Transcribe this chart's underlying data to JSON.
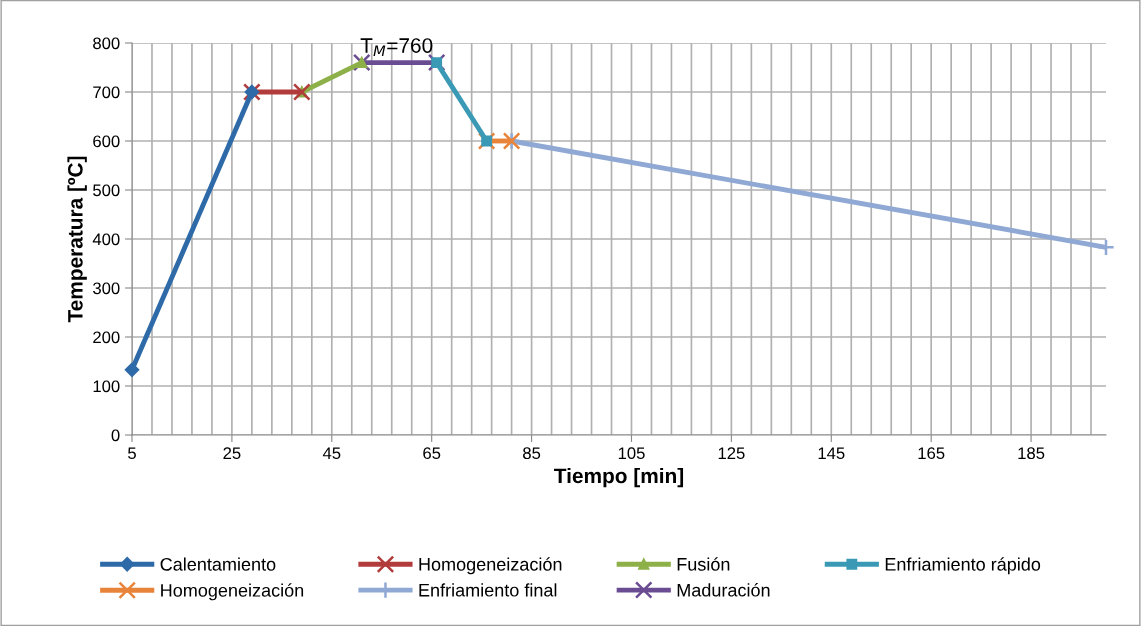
{
  "chart_data": {
    "type": "line",
    "xlabel": "Tiempo [min]",
    "ylabel": "Temperatura [ºC]",
    "xlim": [
      5,
      200
    ],
    "ylim": [
      0,
      800
    ],
    "xticks": [
      5,
      {
        "value": 9,
        "label": null
      },
      {
        "value": 13,
        "label": null
      },
      {
        "value": 17,
        "label": null
      },
      {
        "value": 21,
        "label": null
      },
      25,
      {
        "value": 29,
        "label": null
      },
      {
        "value": 33,
        "label": null
      },
      {
        "value": 37,
        "label": null
      },
      {
        "value": 41,
        "label": null
      },
      45,
      {
        "value": 49,
        "label": null
      },
      {
        "value": 53,
        "label": null
      },
      {
        "value": 57,
        "label": null
      },
      {
        "value": 61,
        "label": null
      },
      65,
      {
        "value": 69,
        "label": null
      },
      {
        "value": 73,
        "label": null
      },
      {
        "value": 77,
        "label": null
      },
      {
        "value": 81,
        "label": null
      },
      85,
      {
        "value": 89,
        "label": null
      },
      {
        "value": 93,
        "label": null
      },
      {
        "value": 97,
        "label": null
      },
      {
        "value": 101,
        "label": null
      },
      105,
      {
        "value": 109,
        "label": null
      },
      {
        "value": 113,
        "label": null
      },
      {
        "value": 117,
        "label": null
      },
      {
        "value": 121,
        "label": null
      },
      125,
      {
        "value": 129,
        "label": null
      },
      {
        "value": 133,
        "label": null
      },
      {
        "value": 137,
        "label": null
      },
      {
        "value": 141,
        "label": null
      },
      145,
      {
        "value": 149,
        "label": null
      },
      {
        "value": 153,
        "label": null
      },
      {
        "value": 157,
        "label": null
      },
      {
        "value": 161,
        "label": null
      },
      165,
      {
        "value": 169,
        "label": null
      },
      {
        "value": 173,
        "label": null
      },
      {
        "value": 177,
        "label": null
      },
      {
        "value": 181,
        "label": null
      },
      185,
      {
        "value": 189,
        "label": null
      },
      {
        "value": 193,
        "label": null
      },
      {
        "value": 197,
        "label": null
      }
    ],
    "yticks": [
      0,
      100,
      200,
      300,
      400,
      500,
      600,
      700,
      800
    ],
    "grid": true,
    "legend": "bottom",
    "line_style": "solid",
    "annotations": [
      {
        "text": "T$_{M}$=760",
        "x": 58,
        "y": 760
      }
    ],
    "series": [
      {
        "name": "Calentamiento",
        "color": "#2e6aa8",
        "marker": "diamond",
        "x": [
          5,
          29
        ],
        "values": [
          133,
          700
        ]
      },
      {
        "name": "Homogeneización",
        "color": "#b23b3b",
        "marker": "cross",
        "x": [
          29,
          39
        ],
        "values": [
          700,
          700
        ]
      },
      {
        "name": "Fusión",
        "color": "#8db048",
        "marker": "triangle",
        "x": [
          39,
          51
        ],
        "values": [
          700,
          760
        ]
      },
      {
        "name": "Enfriamiento rápido",
        "color": "#3a9ab5",
        "marker": "square",
        "x": [
          66,
          76
        ],
        "values": [
          760,
          600
        ]
      },
      {
        "name": "Homogeneización",
        "color": "#e8843a",
        "marker": "cross",
        "x": [
          76,
          81
        ],
        "values": [
          600,
          600
        ]
      },
      {
        "name": "Enfriamiento final",
        "color": "#8fa9d4",
        "marker": "plus",
        "x": [
          81,
          200
        ],
        "values": [
          600,
          383
        ]
      },
      {
        "name": "Maduración",
        "color": "#6a4c93",
        "marker": "cross",
        "x": [
          51,
          66
        ],
        "values": [
          760,
          760
        ]
      }
    ]
  }
}
